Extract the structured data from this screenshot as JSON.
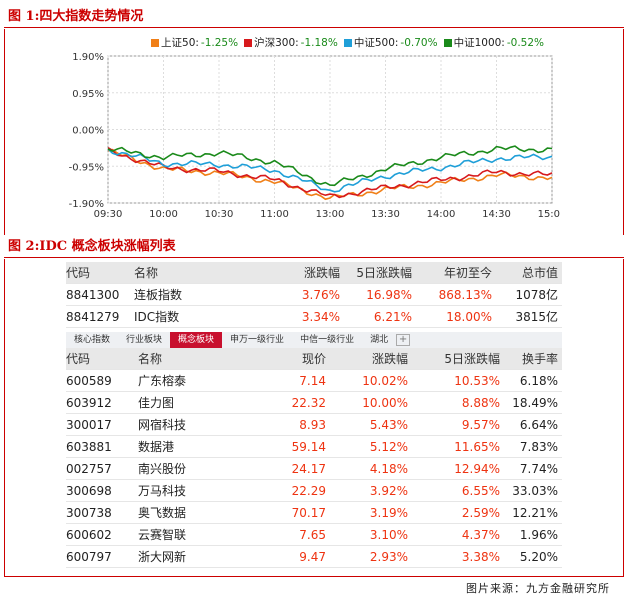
{
  "figure1": {
    "title": "图 1:四大指数走势情况"
  },
  "figure2": {
    "title": "图 2:IDC 概念板块涨幅列表"
  },
  "legend": [
    {
      "name": "上证50",
      "change": "-1.25%",
      "color": "#f07f17"
    },
    {
      "name": "沪深300",
      "change": "-1.18%",
      "color": "#d7191c"
    },
    {
      "name": "中证500",
      "change": "-0.70%",
      "color": "#1f9fd8"
    },
    {
      "name": "中证1000",
      "change": "-0.52%",
      "color": "#1a8a1a"
    }
  ],
  "chart_data": {
    "type": "line",
    "title": "",
    "y_ticks": [
      "1.90%",
      "0.95%",
      "0.00%",
      "-0.95%",
      "-1.90%"
    ],
    "x_ticks": [
      "09:30",
      "10:00",
      "10:30",
      "11:00",
      "13:00",
      "13:30",
      "14:00",
      "14:30",
      "15:00"
    ],
    "ylim": [
      -1.9,
      1.9
    ],
    "x": [
      0,
      1,
      2,
      3,
      4,
      5,
      6,
      7,
      8
    ],
    "series": [
      {
        "name": "上证50",
        "values": [
          -0.55,
          -1.02,
          -1.12,
          -1.35,
          -1.78,
          -1.55,
          -1.38,
          -1.18,
          -1.25
        ]
      },
      {
        "name": "沪深300",
        "values": [
          -0.55,
          -0.98,
          -1.08,
          -1.3,
          -1.74,
          -1.5,
          -1.3,
          -1.1,
          -1.18
        ]
      },
      {
        "name": "中证500",
        "values": [
          -0.52,
          -0.88,
          -0.9,
          -1.05,
          -1.58,
          -1.2,
          -0.98,
          -0.75,
          -0.7
        ]
      },
      {
        "name": "中证1000",
        "values": [
          -0.5,
          -0.72,
          -0.6,
          -0.85,
          -1.45,
          -1.02,
          -0.72,
          -0.5,
          -0.52
        ]
      }
    ],
    "grid": true
  },
  "index_table": {
    "headers": [
      "代码",
      "名称",
      "涨跌幅",
      "5日涨跌幅",
      "年初至今",
      "总市值"
    ],
    "rows": [
      [
        "8841300",
        "连板指数",
        "3.76%",
        "16.98%",
        "868.13%",
        "1078亿"
      ],
      [
        "8841279",
        "IDC指数",
        "3.34%",
        "6.21%",
        "18.00%",
        "3815亿"
      ]
    ]
  },
  "tabs": [
    "核心指数",
    "行业板块",
    "概念板块",
    "申万一级行业",
    "中信一级行业",
    "湖北",
    "+"
  ],
  "stock_table": {
    "headers": [
      "代码",
      "名称",
      "现价",
      "涨跌幅",
      "5日涨跌幅",
      "换手率"
    ],
    "rows": [
      [
        "600589",
        "广东榕泰",
        "7.14",
        "10.02%",
        "10.53%",
        "6.18%"
      ],
      [
        "603912",
        "佳力图",
        "22.32",
        "10.00%",
        "8.88%",
        "18.49%"
      ],
      [
        "300017",
        "网宿科技",
        "8.93",
        "5.43%",
        "9.57%",
        "6.64%"
      ],
      [
        "603881",
        "数据港",
        "59.14",
        "5.12%",
        "11.65%",
        "7.83%"
      ],
      [
        "002757",
        "南兴股份",
        "24.17",
        "4.18%",
        "12.94%",
        "7.74%"
      ],
      [
        "300698",
        "万马科技",
        "22.29",
        "3.92%",
        "6.55%",
        "33.03%"
      ],
      [
        "300738",
        "奥飞数据",
        "70.17",
        "3.19%",
        "2.59%",
        "12.21%"
      ],
      [
        "600602",
        "云赛智联",
        "7.65",
        "3.10%",
        "4.37%",
        "1.96%"
      ],
      [
        "600797",
        "浙大网新",
        "9.47",
        "2.93%",
        "3.38%",
        "5.20%"
      ]
    ]
  },
  "source": "图片来源：九方金融研究所"
}
